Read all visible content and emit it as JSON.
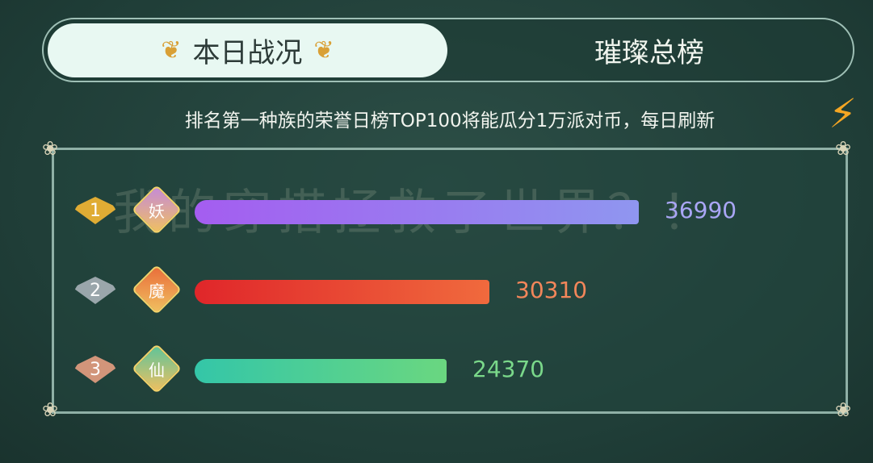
{
  "tabs": {
    "active": "本日战况",
    "other": "璀璨总榜"
  },
  "subtitle": "排名第一种族的荣誉日榜TOP100将能瓜分1万派对币，每日刷新",
  "watermark": "我的穿搭拯救了世界？！",
  "rows": [
    {
      "rank": "1",
      "race": "妖",
      "value": "36990",
      "score": 36990,
      "bar_from": "#a45df0",
      "bar_to": "#8f96f0",
      "value_color": "#a9a6f5",
      "fan_color": "#e0ac34",
      "badge_color": "#c58ad8"
    },
    {
      "rank": "2",
      "race": "魔",
      "value": "30310",
      "score": 30310,
      "bar_from": "#e0262a",
      "bar_to": "#f06a3d",
      "value_color": "#f2865a",
      "fan_color": "#9aa6ab",
      "badge_color": "#e96d3a"
    },
    {
      "rank": "3",
      "race": "仙",
      "value": "24370",
      "score": 24370,
      "bar_from": "#34c6a8",
      "bar_to": "#6ad780",
      "value_color": "#7ad88a",
      "fan_color": "#d2957a",
      "badge_color": "#5dc49a"
    }
  ]
}
